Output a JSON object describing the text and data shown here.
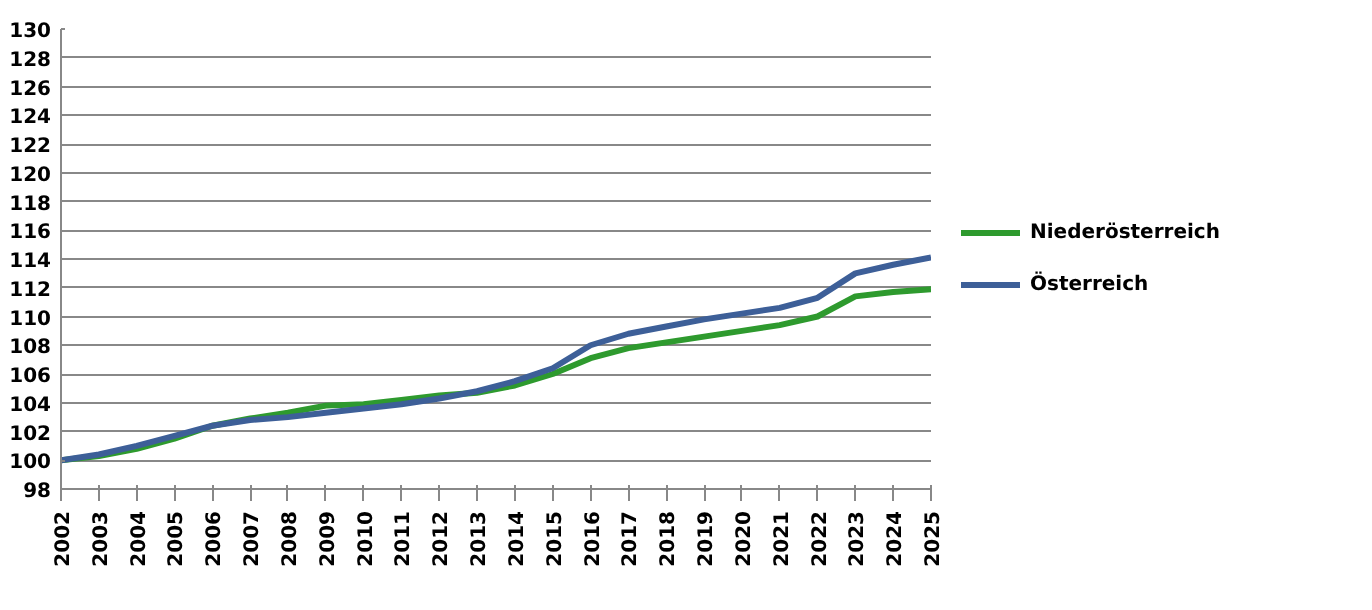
{
  "chart_data": {
    "type": "line",
    "x": [
      2002,
      2003,
      2004,
      2005,
      2006,
      2007,
      2008,
      2009,
      2010,
      2011,
      2012,
      2013,
      2014,
      2015,
      2016,
      2017,
      2018,
      2019,
      2020,
      2021,
      2022,
      2023,
      2024,
      2025
    ],
    "series": [
      {
        "name": "Niederösterreich",
        "color": "#2e9a2e",
        "values": [
          100,
          100.3,
          100.8,
          101.5,
          102.4,
          102.9,
          103.3,
          103.8,
          103.9,
          104.2,
          104.5,
          104.7,
          105.2,
          106.0,
          107.1,
          107.8,
          108.2,
          108.6,
          109.0,
          109.4,
          110.0,
          111.4,
          111.7,
          111.9
        ]
      },
      {
        "name": "Österreich",
        "color": "#3d5f98",
        "values": [
          100,
          100.4,
          101.0,
          101.7,
          102.4,
          102.8,
          103.0,
          103.3,
          103.6,
          103.9,
          104.3,
          104.8,
          105.5,
          106.4,
          108.0,
          108.8,
          109.3,
          109.8,
          110.2,
          110.6,
          111.3,
          113.0,
          113.6,
          114.1
        ]
      }
    ],
    "xlim": [
      2002,
      2025
    ],
    "xticks": [
      2002,
      2003,
      2004,
      2005,
      2006,
      2007,
      2008,
      2009,
      2010,
      2011,
      2012,
      2013,
      2014,
      2015,
      2016,
      2017,
      2018,
      2019,
      2020,
      2021,
      2022,
      2023,
      2024,
      2025
    ],
    "ylim": [
      98,
      130
    ],
    "yticks": [
      98,
      100,
      102,
      104,
      106,
      108,
      110,
      112,
      114,
      116,
      118,
      120,
      122,
      124,
      126,
      128,
      130
    ],
    "grid": "y",
    "legend": "right",
    "marker": "none",
    "line_style": "solid"
  }
}
